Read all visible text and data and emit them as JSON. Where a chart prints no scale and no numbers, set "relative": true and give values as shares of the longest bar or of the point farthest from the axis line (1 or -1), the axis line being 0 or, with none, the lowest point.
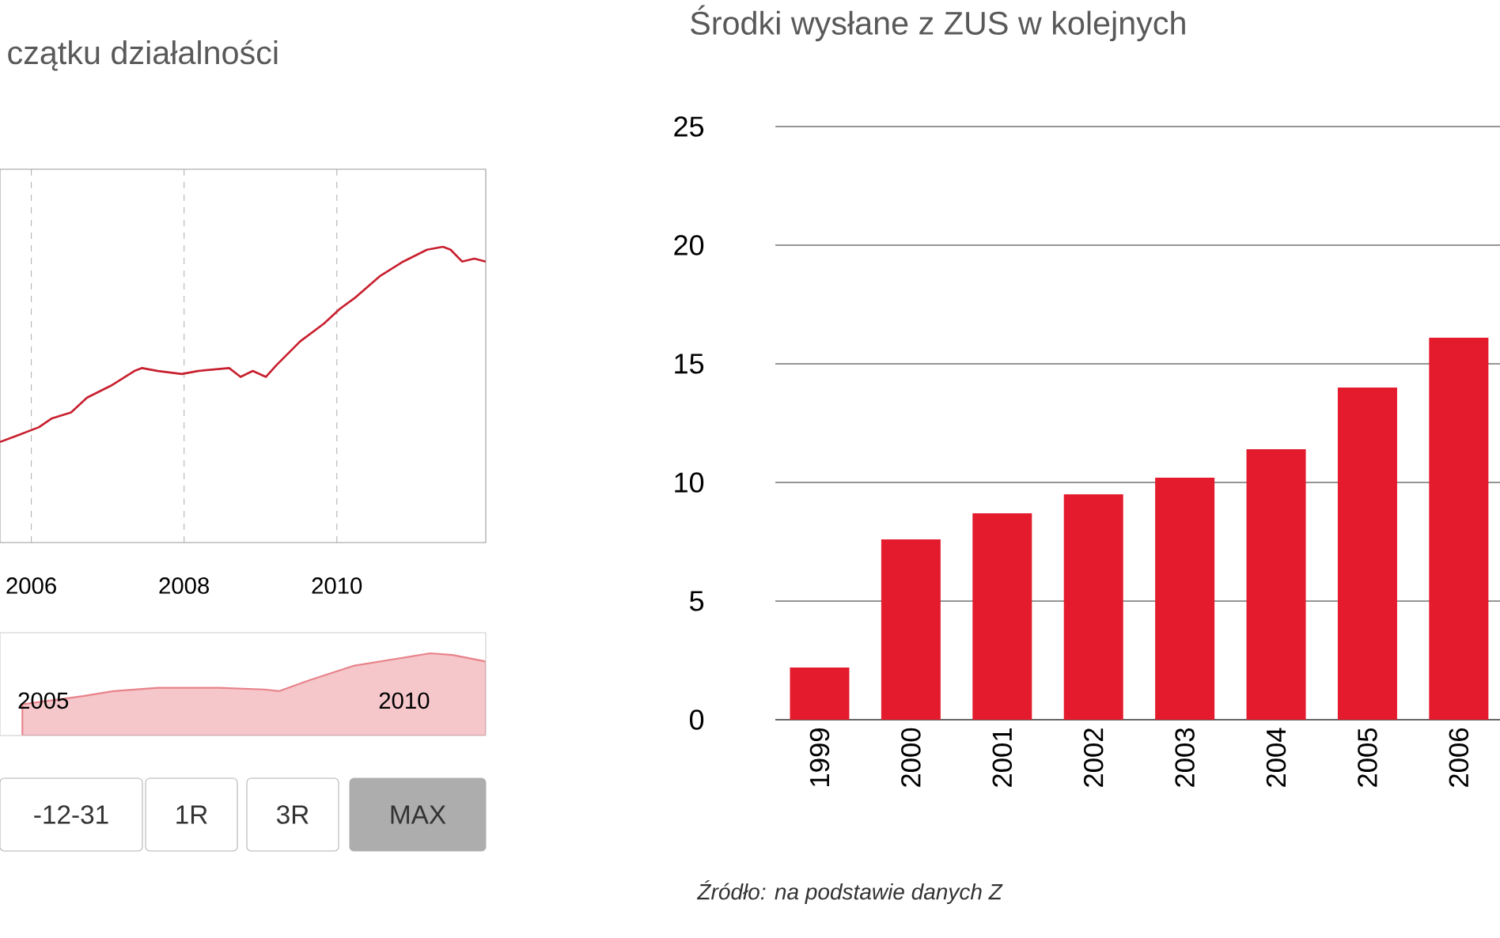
{
  "chart_data": [
    {
      "type": "line",
      "title": "czątku działalności",
      "relative": true,
      "grid": "x",
      "marker": "none",
      "line_style": "solid",
      "xlim": [
        2005.59,
        2011.95
      ],
      "xticks": [
        2006,
        2008,
        2010
      ],
      "series": [
        {
          "color": "#c8202f",
          "x": [
            2005.59,
            2005.8,
            2006.1,
            2006.27,
            2006.52,
            2006.73,
            2007.04,
            2007.35,
            2007.45,
            2007.66,
            2007.97,
            2008.18,
            2008.59,
            2008.74,
            2008.9,
            2009.07,
            2009.21,
            2009.52,
            2009.83,
            2010.04,
            2010.25,
            2010.56,
            2010.87,
            2011.18,
            2011.39,
            2011.49,
            2011.64,
            2011.8,
            2011.95
          ],
          "values": [
            0.34,
            0.36,
            0.39,
            0.42,
            0.44,
            0.49,
            0.53,
            0.58,
            0.59,
            0.58,
            0.57,
            0.58,
            0.59,
            0.56,
            0.58,
            0.56,
            0.6,
            0.68,
            0.74,
            0.79,
            0.83,
            0.9,
            0.95,
            0.99,
            1,
            0.99,
            0.95,
            0.96,
            0.95
          ]
        }
      ]
    },
    {
      "type": "area",
      "relative": true,
      "tick_labels": "x",
      "xlim": [
        2004.4,
        2011.13
      ],
      "xticks": [
        2005,
        2010
      ],
      "annotations": [
        "-12-31",
        "1R",
        "3R",
        "MAX"
      ],
      "series": [
        {
          "color": "#e8828a",
          "x": [
            2004.71,
            2005.55,
            2005.97,
            2006.59,
            2007.43,
            2008.06,
            2008.27,
            2008.68,
            2009.31,
            2009.94,
            2010.36,
            2010.67,
            2011.13
          ],
          "values": [
            0.38,
            0.48,
            0.54,
            0.58,
            0.58,
            0.56,
            0.54,
            0.67,
            0.85,
            0.94,
            1,
            0.98,
            0.9
          ]
        }
      ]
    },
    {
      "type": "bar",
      "title": "Środki wysłane z ZUS w kolejnych",
      "color": "#e31b2d",
      "grid": "y",
      "categories": [
        "1999",
        "2000",
        "2001",
        "2002",
        "2003",
        "2004",
        "2005",
        "2006"
      ],
      "values": [
        2.2,
        7.6,
        8.7,
        9.5,
        10.2,
        11.4,
        14.0,
        16.1
      ],
      "ylim": [
        0,
        25
      ],
      "yticks": [
        0,
        5,
        10,
        15,
        20,
        25
      ],
      "annotations": [
        "Źródło: na podstawie danych Z"
      ]
    }
  ]
}
